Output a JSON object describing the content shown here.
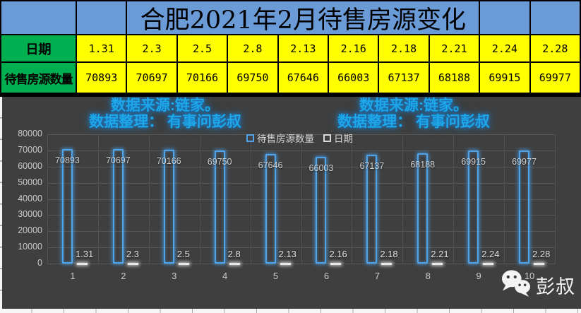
{
  "title": "合肥2021年2月待售房源变化",
  "table": {
    "date_label": "日期",
    "count_label": "待售房源数量",
    "dates": [
      "1.31",
      "2.3",
      "2.5",
      "2.8",
      "2.13",
      "2.16",
      "2.18",
      "2.21",
      "2.24",
      "2.28"
    ],
    "counts": [
      "70893",
      "70697",
      "70166",
      "69750",
      "67646",
      "66003",
      "67137",
      "68188",
      "69915",
      "69977"
    ]
  },
  "watermark": {
    "source_line": "数据来源:链家。",
    "credit_line": "数据整理： 有事问彭叔"
  },
  "legend": [
    {
      "label": "待售房源数量",
      "color": "#4FA3E8"
    },
    {
      "label": "日期",
      "color": "#D9D9D9"
    }
  ],
  "chart_data": {
    "type": "bar",
    "title": "合肥2021年2月待售房源变化",
    "categories": [
      "1",
      "2",
      "3",
      "4",
      "5",
      "6",
      "7",
      "8",
      "9",
      "10"
    ],
    "series": [
      {
        "name": "待售房源数量",
        "values": [
          70893,
          70697,
          70166,
          69750,
          67646,
          66003,
          67137,
          68188,
          69915,
          69977
        ]
      },
      {
        "name": "日期",
        "values": [
          1.31,
          2.3,
          2.5,
          2.8,
          2.13,
          2.16,
          2.18,
          2.21,
          2.24,
          2.28
        ],
        "labels": [
          "1.31",
          "2.3",
          "2.5",
          "2.8",
          "2.13",
          "2.16",
          "2.18",
          "2.21",
          "2.24",
          "2.28"
        ]
      }
    ],
    "ylim": [
      0,
      80000
    ],
    "ytick_step": 10000,
    "grid": true,
    "legend_position": "top-inside"
  },
  "branding": {
    "name": "彭叔",
    "icon": "wechat-icon"
  },
  "colors": {
    "header_blue": "#6B9BD7",
    "cell_green": "#00B050",
    "cell_yellow": "#FFFF00",
    "chart_bg": "#3F3F3F",
    "bar_stroke": "#4FA3E8",
    "watermark_blue": "#1FA8E8",
    "gridline": "#575757",
    "label_gray": "#D2D2D2"
  }
}
